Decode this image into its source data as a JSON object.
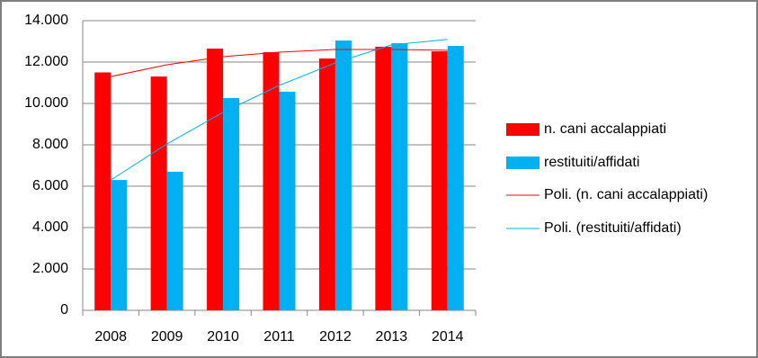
{
  "chart_data": {
    "type": "bar",
    "categories": [
      "2008",
      "2009",
      "2010",
      "2011",
      "2012",
      "2013",
      "2014"
    ],
    "series": [
      {
        "name": "n. cani accalappiati",
        "color": "#ff0000",
        "type": "bar",
        "values": [
          11500,
          11300,
          12650,
          12480,
          12170,
          12740,
          12520
        ]
      },
      {
        "name": "restituiti/affidati",
        "color": "#00b0f0",
        "type": "bar",
        "values": [
          6300,
          6700,
          10260,
          10570,
          13040,
          12910,
          12780
        ]
      },
      {
        "name": "Poli. (n. cani accalappiati)",
        "color": "#ff0000",
        "type": "line",
        "values": [
          11300,
          11870,
          12260,
          12480,
          12610,
          12610,
          12570
        ]
      },
      {
        "name": "Poli. (restituiti/affidati)",
        "color": "#00b0f0",
        "type": "line",
        "values": [
          6300,
          8040,
          9570,
          10870,
          11960,
          12830,
          13090
        ]
      }
    ],
    "ylim": [
      0,
      14000
    ],
    "yticks": [
      0,
      {
        "value": 2000,
        "label": "2.000"
      },
      {
        "value": 4000,
        "label": "4.000"
      },
      {
        "value": 6000,
        "label": "6.000"
      },
      {
        "value": 8000,
        "label": "8.000"
      },
      {
        "value": 10000,
        "label": "10.000"
      },
      {
        "value": 12000,
        "label": "12.000"
      },
      {
        "value": 14000,
        "label": "14.000"
      }
    ],
    "grid": true,
    "legend": "right"
  }
}
